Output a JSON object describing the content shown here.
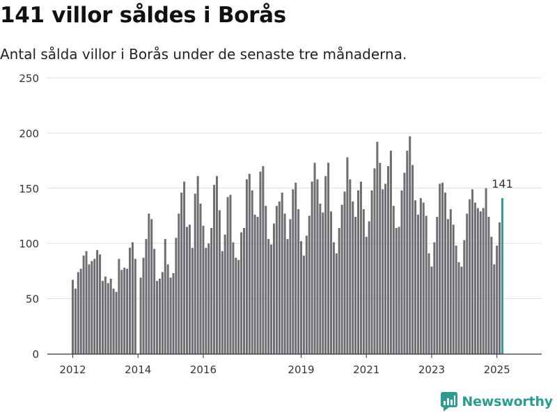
{
  "header": {
    "title": "141 villor såldes i Borås",
    "subtitle": "Antal sålda villor i Borås under de senaste tre månaderna."
  },
  "brand": {
    "name": "Newsworthy",
    "icon": "chart-logo-icon"
  },
  "colors": {
    "bar": "#6e6d72",
    "highlight": "#2a9d92",
    "grid": "#dddddd",
    "axis": "#333333"
  },
  "chart_data": {
    "type": "bar",
    "title": "141 villor såldes i Borås",
    "subtitle": "Antal sålda villor i Borås under de senaste tre månaderna.",
    "xlabel": "",
    "ylabel": "",
    "ylim": [
      0,
      250
    ],
    "yticks": [
      0,
      50,
      100,
      150,
      200,
      250
    ],
    "xtick_labels": [
      "2012",
      "2014",
      "2016",
      "2019",
      "2021",
      "2023",
      "2025"
    ],
    "grid": true,
    "series_start": "2012-01",
    "frequency": "monthly",
    "values": [
      67,
      59,
      74,
      77,
      89,
      93,
      81,
      84,
      86,
      94,
      90,
      66,
      70,
      64,
      68,
      59,
      56,
      86,
      76,
      78,
      77,
      96,
      101,
      86,
      0,
      69,
      87,
      104,
      127,
      122,
      95,
      66,
      68,
      74,
      104,
      81,
      69,
      73,
      105,
      127,
      146,
      156,
      115,
      117,
      96,
      145,
      161,
      136,
      116,
      96,
      100,
      114,
      153,
      161,
      130,
      93,
      108,
      142,
      144,
      101,
      87,
      85,
      110,
      114,
      158,
      163,
      148,
      126,
      124,
      165,
      170,
      134,
      104,
      99,
      118,
      134,
      138,
      146,
      127,
      104,
      122,
      149,
      155,
      131,
      102,
      89,
      107,
      125,
      156,
      173,
      158,
      136,
      128,
      161,
      173,
      129,
      101,
      91,
      114,
      135,
      147,
      178,
      158,
      138,
      124,
      148,
      156,
      131,
      106,
      120,
      148,
      168,
      192,
      173,
      149,
      154,
      170,
      184,
      134,
      114,
      115,
      148,
      164,
      184,
      197,
      171,
      139,
      126,
      141,
      137,
      125,
      91,
      79,
      101,
      124,
      154,
      155,
      146,
      122,
      131,
      117,
      98,
      83,
      79,
      103,
      127,
      140,
      149,
      137,
      132,
      129,
      132,
      150,
      124,
      106,
      81,
      98,
      119,
      141
    ],
    "highlight": {
      "label": "141",
      "value": 141,
      "index": 158
    }
  }
}
